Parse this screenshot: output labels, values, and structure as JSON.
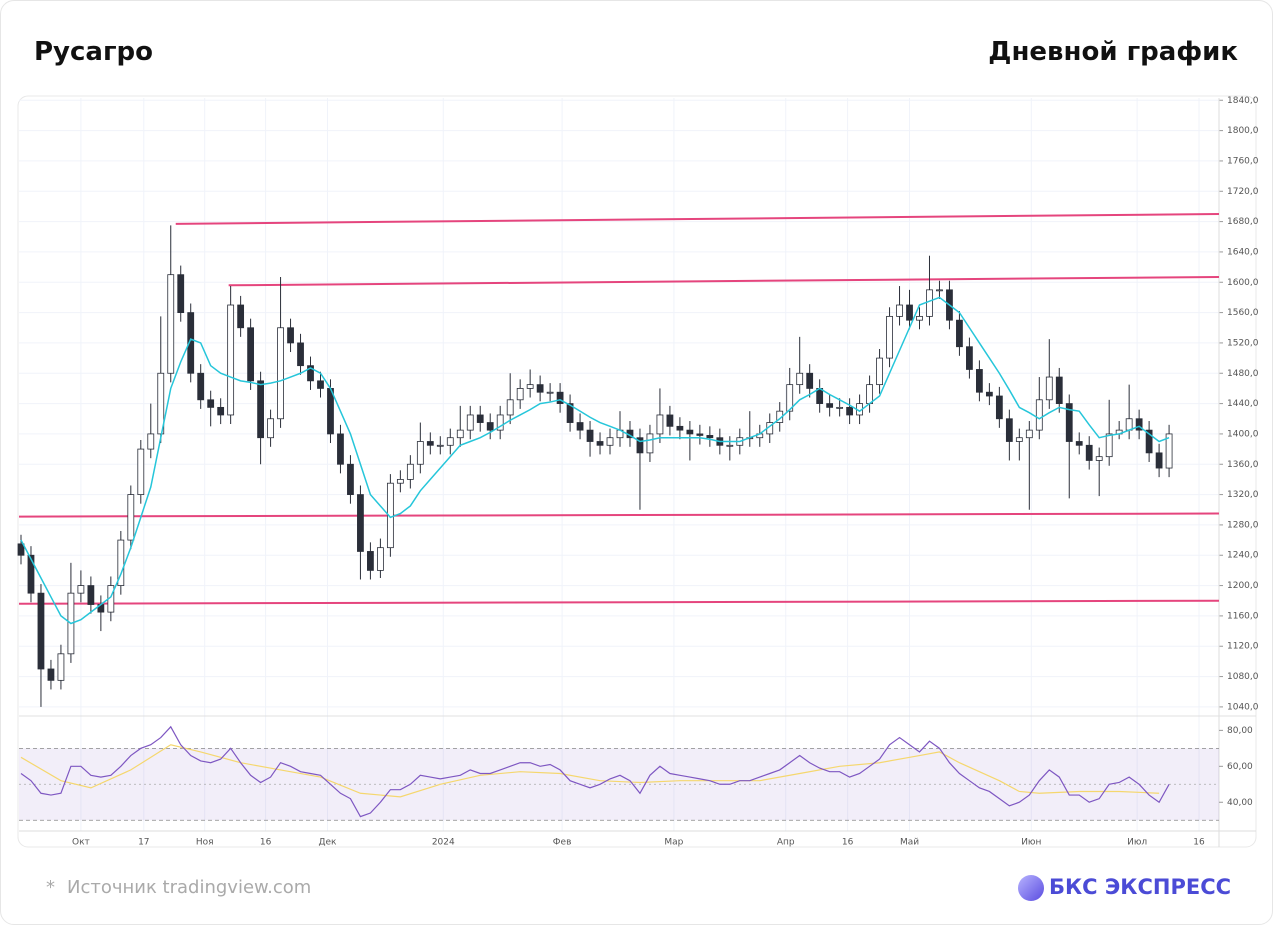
{
  "header": {
    "title": "Русагро",
    "subtitle": "Дневной график"
  },
  "chart_data": {
    "type": "candlestick",
    "x": [
      0,
      1,
      2,
      3,
      4,
      5,
      6,
      7,
      8,
      9,
      10,
      11,
      12,
      13,
      14,
      15,
      16,
      17,
      18,
      19,
      20,
      21,
      22,
      23,
      24,
      25,
      26,
      27,
      28,
      29,
      30,
      31,
      32,
      33,
      34,
      35,
      36,
      37,
      38,
      39,
      40,
      41,
      42,
      43,
      44,
      45,
      46,
      47,
      48,
      49,
      50,
      51,
      52,
      53,
      54,
      55,
      56,
      57,
      58,
      59,
      60,
      61,
      62,
      63,
      64,
      65,
      66,
      67,
      68,
      69,
      70,
      71,
      72,
      73,
      74,
      75,
      76,
      77,
      78,
      79,
      80,
      81,
      82,
      83,
      84,
      85,
      86,
      87,
      88,
      89,
      90,
      91,
      92,
      93,
      94,
      95,
      96,
      97,
      98,
      99,
      100,
      101,
      102,
      103,
      104,
      105,
      106,
      107,
      108,
      109,
      110,
      111,
      112,
      113,
      114,
      115
    ],
    "open": [
      1255,
      1240,
      1190,
      1090,
      1075,
      1110,
      1190,
      1200,
      1175,
      1165,
      1200,
      1260,
      1320,
      1380,
      1400,
      1480,
      1610,
      1560,
      1480,
      1445,
      1435,
      1425,
      1570,
      1540,
      1470,
      1395,
      1420,
      1540,
      1520,
      1490,
      1470,
      1460,
      1400,
      1360,
      1320,
      1245,
      1220,
      1250,
      1335,
      1340,
      1360,
      1390,
      1385,
      1385,
      1395,
      1405,
      1425,
      1415,
      1405,
      1425,
      1445,
      1460,
      1465,
      1455,
      1455,
      1440,
      1415,
      1405,
      1390,
      1385,
      1395,
      1405,
      1395,
      1375,
      1400,
      1425,
      1410,
      1405,
      1400,
      1398,
      1395,
      1385,
      1385,
      1395,
      1395,
      1400,
      1415,
      1430,
      1465,
      1480,
      1460,
      1440,
      1435,
      1435,
      1425,
      1440,
      1465,
      1500,
      1555,
      1570,
      1550,
      1555,
      1590,
      1590,
      1550,
      1515,
      1485,
      1455,
      1450,
      1420,
      1390,
      1395,
      1405,
      1445,
      1475,
      1440,
      1390,
      1385,
      1365,
      1370,
      1400,
      1405,
      1420,
      1405,
      1375,
      1355
    ],
    "high": [
      1267,
      1252,
      1202,
      1102,
      1122,
      1230,
      1220,
      1212,
      1187,
      1212,
      1272,
      1332,
      1392,
      1440,
      1555,
      1675,
      1622,
      1572,
      1492,
      1457,
      1447,
      1595,
      1582,
      1552,
      1482,
      1432,
      1607,
      1552,
      1532,
      1502,
      1482,
      1472,
      1412,
      1372,
      1332,
      1257,
      1262,
      1347,
      1352,
      1372,
      1415,
      1402,
      1397,
      1407,
      1437,
      1437,
      1437,
      1427,
      1437,
      1480,
      1472,
      1485,
      1477,
      1467,
      1467,
      1452,
      1427,
      1417,
      1402,
      1407,
      1430,
      1417,
      1407,
      1412,
      1460,
      1437,
      1422,
      1417,
      1412,
      1410,
      1407,
      1397,
      1407,
      1430,
      1412,
      1427,
      1442,
      1487,
      1528,
      1492,
      1472,
      1452,
      1447,
      1447,
      1452,
      1477,
      1512,
      1567,
      1595,
      1590,
      1567,
      1635,
      1602,
      1602,
      1562,
      1527,
      1497,
      1467,
      1462,
      1432,
      1407,
      1417,
      1475,
      1525,
      1487,
      1452,
      1402,
      1397,
      1382,
      1445,
      1417,
      1465,
      1432,
      1417,
      1387,
      1412
    ],
    "low": [
      1228,
      1178,
      1040,
      1063,
      1063,
      1098,
      1178,
      1163,
      1140,
      1153,
      1188,
      1248,
      1308,
      1368,
      1388,
      1468,
      1548,
      1468,
      1433,
      1410,
      1413,
      1413,
      1528,
      1458,
      1360,
      1383,
      1408,
      1508,
      1478,
      1458,
      1448,
      1388,
      1348,
      1308,
      1208,
      1208,
      1210,
      1238,
      1323,
      1328,
      1348,
      1373,
      1373,
      1373,
      1383,
      1393,
      1403,
      1393,
      1393,
      1413,
      1433,
      1448,
      1443,
      1443,
      1428,
      1403,
      1393,
      1370,
      1373,
      1373,
      1383,
      1383,
      1300,
      1363,
      1388,
      1398,
      1393,
      1365,
      1386,
      1383,
      1373,
      1365,
      1373,
      1383,
      1383,
      1388,
      1403,
      1418,
      1453,
      1448,
      1428,
      1423,
      1423,
      1413,
      1413,
      1428,
      1453,
      1488,
      1543,
      1538,
      1538,
      1543,
      1578,
      1538,
      1503,
      1473,
      1443,
      1438,
      1408,
      1365,
      1365,
      1300,
      1393,
      1433,
      1428,
      1315,
      1373,
      1353,
      1318,
      1358,
      1393,
      1393,
      1393,
      1363,
      1343,
      1343
    ],
    "close": [
      1240,
      1190,
      1090,
      1075,
      1110,
      1190,
      1200,
      1175,
      1165,
      1200,
      1260,
      1320,
      1380,
      1400,
      1480,
      1610,
      1560,
      1480,
      1445,
      1435,
      1425,
      1570,
      1540,
      1470,
      1395,
      1420,
      1540,
      1520,
      1490,
      1470,
      1460,
      1400,
      1360,
      1320,
      1245,
      1220,
      1250,
      1335,
      1340,
      1360,
      1390,
      1385,
      1385,
      1395,
      1405,
      1425,
      1415,
      1405,
      1425,
      1445,
      1460,
      1465,
      1455,
      1455,
      1440,
      1415,
      1405,
      1390,
      1385,
      1395,
      1405,
      1395,
      1375,
      1400,
      1425,
      1410,
      1405,
      1400,
      1398,
      1395,
      1385,
      1385,
      1395,
      1395,
      1400,
      1415,
      1430,
      1465,
      1480,
      1460,
      1440,
      1435,
      1435,
      1425,
      1440,
      1465,
      1500,
      1555,
      1570,
      1550,
      1555,
      1590,
      1590,
      1550,
      1515,
      1485,
      1455,
      1450,
      1420,
      1390,
      1395,
      1405,
      1445,
      1475,
      1440,
      1390,
      1385,
      1365,
      1370,
      1400,
      1405,
      1420,
      1405,
      1375,
      1355,
      1400
    ],
    "up_color": "#ffffff",
    "down_color": "#2a2e39",
    "wick_color": "#2a2e39",
    "ma": {
      "color": "#26c6da",
      "values": [
        1260,
        1235,
        1210,
        1185,
        1160,
        1150,
        1155,
        1165,
        1175,
        1185,
        1215,
        1250,
        1290,
        1330,
        1395,
        1460,
        1495,
        1525,
        1520,
        1490,
        1480,
        1475,
        1470,
        1468,
        1465,
        1467,
        1470,
        1475,
        1480,
        1487,
        1480,
        1460,
        1430,
        1400,
        1360,
        1320,
        1305,
        1290,
        1295,
        1305,
        1325,
        1340,
        1355,
        1370,
        1385,
        1390,
        1395,
        1402,
        1410,
        1418,
        1425,
        1432,
        1440,
        1442,
        1445,
        1438,
        1430,
        1422,
        1415,
        1410,
        1405,
        1398,
        1390,
        1392,
        1395,
        1395,
        1395,
        1395,
        1395,
        1393,
        1390,
        1390,
        1390,
        1395,
        1400,
        1410,
        1420,
        1432,
        1445,
        1452,
        1460,
        1452,
        1445,
        1438,
        1430,
        1440,
        1450,
        1480,
        1510,
        1540,
        1570,
        1575,
        1580,
        1570,
        1560,
        1540,
        1520,
        1500,
        1480,
        1458,
        1435,
        1428,
        1420,
        1428,
        1435,
        1432,
        1430,
        1412,
        1395,
        1398,
        1400,
        1405,
        1410,
        1400,
        1390,
        1395
      ]
    },
    "trend_lines": [
      {
        "color": "#e5457d",
        "x": [
          15.5,
          120
        ],
        "y": [
          1677,
          1690
        ]
      },
      {
        "color": "#e5457d",
        "x": [
          20.8,
          120
        ],
        "y": [
          1596,
          1607
        ]
      },
      {
        "color": "#e5457d",
        "x": [
          -0.2,
          120
        ],
        "y": [
          1291,
          1295
        ]
      },
      {
        "color": "#e5457d",
        "x": [
          -0.2,
          120
        ],
        "y": [
          1176,
          1180
        ]
      }
    ],
    "xlim": [
      -0.2,
      120
    ],
    "ylim": [
      1028,
      1843
    ],
    "xticks": [
      {
        "value": 6,
        "label": "Окт"
      },
      {
        "value": 12.3,
        "label": "17"
      },
      {
        "value": 18.4,
        "label": "Ноя"
      },
      {
        "value": 24.5,
        "label": "16"
      },
      {
        "value": 30.7,
        "label": "Дек"
      },
      {
        "value": 42.3,
        "label": "2024"
      },
      {
        "value": 54.2,
        "label": "Фев"
      },
      {
        "value": 65.4,
        "label": "Мар"
      },
      {
        "value": 76.6,
        "label": "Апр"
      },
      {
        "value": 82.8,
        "label": "16"
      },
      {
        "value": 89,
        "label": "Май"
      },
      {
        "value": 101.2,
        "label": "Июн"
      },
      {
        "value": 111.8,
        "label": "Июл"
      },
      {
        "value": 118,
        "label": "16"
      }
    ],
    "yticks": [
      {
        "value": 1040,
        "label": "1040,0"
      },
      {
        "value": 1080,
        "label": "1080,0"
      },
      {
        "value": 1120,
        "label": "1120,0"
      },
      {
        "value": 1160,
        "label": "1160,0"
      },
      {
        "value": 1200,
        "label": "1200,0"
      },
      {
        "value": 1240,
        "label": "1240,0"
      },
      {
        "value": 1280,
        "label": "1280,0"
      },
      {
        "value": 1320,
        "label": "1320,0"
      },
      {
        "value": 1360,
        "label": "1360,0"
      },
      {
        "value": 1400,
        "label": "1400,0"
      },
      {
        "value": 1440,
        "label": "1440,0"
      },
      {
        "value": 1480,
        "label": "1480,0"
      },
      {
        "value": 1520,
        "label": "1520,0"
      },
      {
        "value": 1560,
        "label": "1560,0"
      },
      {
        "value": 1600,
        "label": "1600,0"
      },
      {
        "value": 1640,
        "label": "1640,0"
      },
      {
        "value": 1680,
        "label": "1680,0"
      },
      {
        "value": 1720,
        "label": "1720,0"
      },
      {
        "value": 1760,
        "label": "1760,0"
      },
      {
        "value": 1800,
        "label": "1800,0"
      },
      {
        "value": 1840,
        "label": "1840,0"
      }
    ],
    "grid": true,
    "rsi": {
      "color": "#7e57c2",
      "values": [
        56,
        52,
        45,
        44,
        45,
        60,
        60,
        55,
        54,
        55,
        60,
        66,
        70,
        72,
        76,
        82,
        72,
        66,
        63,
        62,
        64,
        70,
        62,
        55,
        51,
        54,
        62,
        60,
        57,
        56,
        55,
        50,
        45,
        42,
        32,
        34,
        40,
        47,
        47,
        50,
        55,
        54,
        53,
        54,
        55,
        58,
        56,
        56,
        58,
        60,
        62,
        62,
        60,
        61,
        58,
        52,
        50,
        48,
        50,
        53,
        55,
        52,
        45,
        55,
        60,
        56,
        55,
        54,
        53,
        52,
        50,
        50,
        52,
        52,
        54,
        56,
        58,
        62,
        66,
        62,
        59,
        57,
        57,
        54,
        56,
        60,
        64,
        72,
        76,
        72,
        68,
        74,
        70,
        62,
        56,
        52,
        48,
        46,
        42,
        38,
        40,
        44,
        52,
        58,
        54,
        44,
        44,
        40,
        42,
        50,
        51,
        54,
        50,
        44,
        40,
        50
      ],
      "ma": {
        "color": "#f5d76e",
        "x": [
          0,
          4,
          7,
          11,
          15,
          18,
          22,
          26,
          30,
          34,
          38,
          42,
          46,
          50,
          54,
          58,
          62,
          66,
          70,
          74,
          78,
          82,
          86,
          90,
          92,
          94,
          98,
          100,
          102,
          106,
          110,
          114
        ],
        "values": [
          65,
          52,
          48,
          58,
          72,
          68,
          62,
          58,
          54,
          45,
          43,
          50,
          55,
          57,
          56,
          52,
          51,
          52,
          52,
          52,
          56,
          60,
          62,
          66,
          68,
          62,
          52,
          46,
          45,
          46,
          46,
          45
        ]
      },
      "ylim": [
        24,
        88
      ],
      "yticks": [
        {
          "value": 40,
          "label": "40,00"
        },
        {
          "value": 60,
          "label": "60,00"
        },
        {
          "value": 80,
          "label": "80,00"
        }
      ],
      "bands": [
        30,
        70
      ],
      "midline": 50,
      "band_color": "#7e57c2"
    }
  },
  "footer": {
    "star": "*",
    "source": "Источник tradingview.com",
    "brand": "БКС ЭКСПРЕСС"
  }
}
